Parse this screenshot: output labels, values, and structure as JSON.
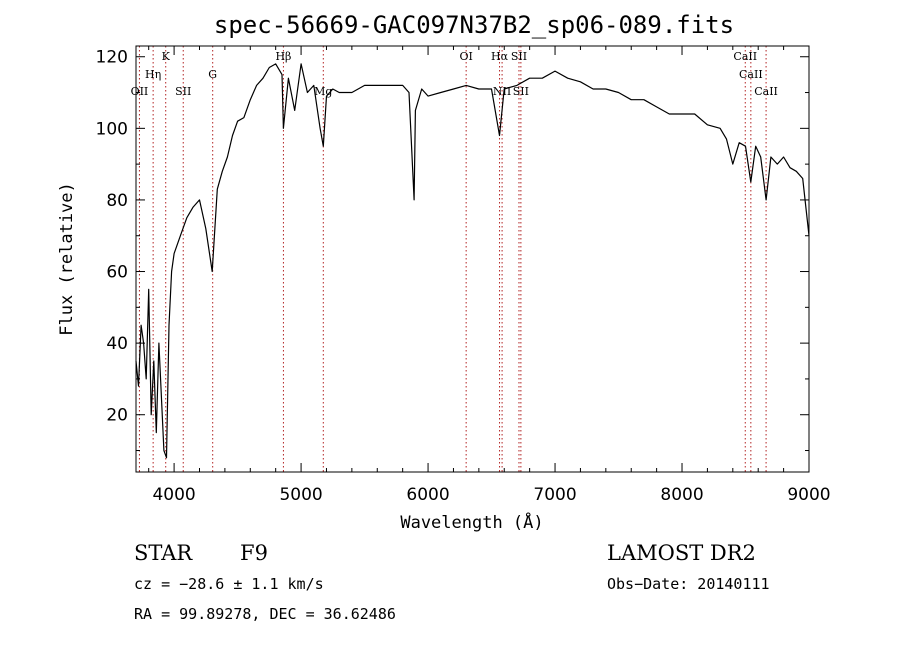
{
  "chart_data": {
    "type": "line",
    "title": "spec-56669-GAC097N37B2_sp06-089.fits",
    "xlabel": "Wavelength (Å)",
    "ylabel": "Flux (relative)",
    "xlim": [
      3700,
      9000
    ],
    "ylim": [
      4,
      123
    ],
    "xticks": [
      4000,
      5000,
      6000,
      7000,
      8000,
      9000
    ],
    "yticks": [
      20,
      40,
      60,
      80,
      100,
      120
    ],
    "grid": false,
    "line_color": "#000000",
    "marker_color": "#b22222",
    "series": [
      {
        "x": [
          3700,
          3720,
          3740,
          3760,
          3780,
          3800,
          3820,
          3840,
          3860,
          3880,
          3900,
          3920,
          3940,
          3960,
          3980,
          4000,
          4050,
          4100,
          4150,
          4200,
          4250,
          4300,
          4340,
          4380,
          4420,
          4460,
          4500,
          4550,
          4600,
          4650,
          4700,
          4750,
          4800,
          4850,
          4861,
          4900,
          4950,
          5000,
          5050,
          5100,
          5150,
          5175,
          5200,
          5250,
          5300,
          5400,
          5500,
          5600,
          5700,
          5800,
          5850,
          5890,
          5900,
          5950,
          6000,
          6100,
          6200,
          6300,
          6400,
          6500,
          6563,
          6600,
          6700,
          6800,
          6900,
          7000,
          7100,
          7200,
          7300,
          7400,
          7500,
          7600,
          7700,
          7800,
          7900,
          8000,
          8100,
          8200,
          8300,
          8350,
          8400,
          8450,
          8500,
          8542,
          8580,
          8620,
          8662,
          8700,
          8750,
          8800,
          8850,
          8900,
          8950,
          9000
        ],
        "y": [
          35,
          28,
          45,
          40,
          30,
          55,
          20,
          35,
          15,
          40,
          25,
          10,
          8,
          45,
          60,
          65,
          70,
          75,
          78,
          80,
          72,
          60,
          83,
          88,
          92,
          98,
          102,
          103,
          108,
          112,
          114,
          117,
          118,
          115,
          100,
          114,
          105,
          118,
          110,
          112,
          100,
          95,
          109,
          111,
          110,
          110,
          112,
          112,
          112,
          112,
          110,
          80,
          105,
          111,
          109,
          110,
          111,
          112,
          111,
          111,
          98,
          111,
          112,
          114,
          114,
          116,
          114,
          113,
          111,
          111,
          110,
          108,
          108,
          106,
          104,
          104,
          104,
          101,
          100,
          97,
          90,
          96,
          95,
          85,
          95,
          92,
          80,
          92,
          90,
          92,
          89,
          88,
          86,
          70
        ]
      }
    ],
    "lines": [
      {
        "label": "OII",
        "x": 3727,
        "row": 3
      },
      {
        "label": "Hη",
        "x": 3835,
        "row": 2
      },
      {
        "label": "K",
        "x": 3934,
        "row": 1
      },
      {
        "label": "SII",
        "x": 4072,
        "row": 3
      },
      {
        "label": "G",
        "x": 4304,
        "row": 2
      },
      {
        "label": "Hβ",
        "x": 4861,
        "row": 1
      },
      {
        "label": "Mg",
        "x": 5175,
        "row": 3
      },
      {
        "label": "OI",
        "x": 6300,
        "row": 1
      },
      {
        "label": "Hα",
        "x": 6563,
        "row": 1
      },
      {
        "label": "NII",
        "x": 6583,
        "row": 3
      },
      {
        "label": "SII",
        "x": 6716,
        "row": 1
      },
      {
        "label": "SII",
        "x": 6731,
        "row": 3
      },
      {
        "label": "CaII",
        "x": 8498,
        "row": 1
      },
      {
        "label": "CaII",
        "x": 8542,
        "row": 2
      },
      {
        "label": "CaII",
        "x": 8662,
        "row": 3
      }
    ]
  },
  "info": {
    "class": "STAR",
    "subclass": "F9",
    "survey": "LAMOST DR2",
    "cz": "cz = −28.6 ± 1.1 km/s",
    "obsdate": "Obs−Date: 20140111",
    "radec": "RA =  99.89278, DEC =  36.62486"
  }
}
